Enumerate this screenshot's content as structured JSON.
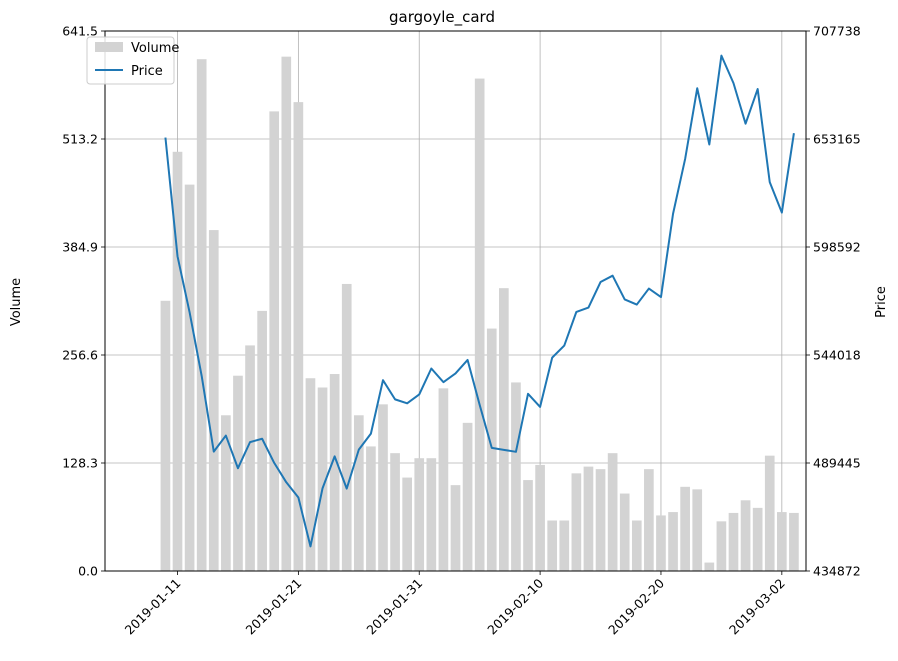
{
  "chart_data": {
    "type": "bar+line",
    "title": "gargoyle_card",
    "xlabel": "",
    "ylabel_left": "Volume",
    "ylabel_right": "Price",
    "legend_position": "top-left",
    "grid": true,
    "x_tick_labels": [
      "2019-01-11",
      "2019-01-21",
      "2019-01-31",
      "2019-02-10",
      "2019-02-20",
      "2019-03-02"
    ],
    "y_left_ticks": [
      "0.0",
      "128.3",
      "256.6",
      "384.9",
      "513.2",
      "641.5"
    ],
    "y_right_ticks": [
      "434872",
      "489445",
      "544018",
      "598592",
      "653165",
      "707738"
    ],
    "ylim_left": [
      0,
      641.5
    ],
    "ylim_right": [
      434872,
      707738
    ],
    "xlim": [
      "2019-01-05",
      "2019-03-04"
    ],
    "colors": {
      "volume": "#d3d3d3",
      "price": "#1f77b4",
      "grid": "#b0b0b0"
    },
    "dates": [
      "2019-01-10",
      "2019-01-11",
      "2019-01-12",
      "2019-01-13",
      "2019-01-14",
      "2019-01-15",
      "2019-01-16",
      "2019-01-17",
      "2019-01-18",
      "2019-01-19",
      "2019-01-20",
      "2019-01-21",
      "2019-01-22",
      "2019-01-23",
      "2019-01-24",
      "2019-01-25",
      "2019-01-26",
      "2019-01-27",
      "2019-01-28",
      "2019-01-29",
      "2019-01-30",
      "2019-01-31",
      "2019-02-01",
      "2019-02-02",
      "2019-02-03",
      "2019-02-04",
      "2019-02-05",
      "2019-02-06",
      "2019-02-07",
      "2019-02-08",
      "2019-02-09",
      "2019-02-10",
      "2019-02-11",
      "2019-02-12",
      "2019-02-13",
      "2019-02-14",
      "2019-02-15",
      "2019-02-16",
      "2019-02-17",
      "2019-02-18",
      "2019-02-19",
      "2019-02-20",
      "2019-02-21",
      "2019-02-22",
      "2019-02-23",
      "2019-02-24",
      "2019-02-25",
      "2019-02-26",
      "2019-02-27",
      "2019-02-28",
      "2019-03-01",
      "2019-03-02",
      "2019-03-03"
    ],
    "series": [
      {
        "name": "Volume",
        "kind": "bar",
        "axis": "left",
        "values": [
          321,
          498,
          459,
          608,
          405,
          185,
          232,
          268,
          309,
          546,
          611,
          557,
          229,
          218,
          234,
          341,
          185,
          148,
          198,
          140,
          111,
          134,
          134,
          217,
          102,
          176,
          585,
          288,
          336,
          224,
          108,
          126,
          60,
          60,
          116,
          124,
          121,
          140,
          92,
          60,
          121,
          66,
          70,
          100,
          97,
          10,
          59,
          69,
          84,
          75,
          137,
          70,
          69
        ]
      },
      {
        "name": "Price",
        "kind": "line",
        "axis": "right",
        "values": [
          653900,
          593900,
          565600,
          533400,
          495200,
          503300,
          486800,
          500000,
          501700,
          489500,
          479700,
          472000,
          447300,
          476700,
          492800,
          476500,
          496200,
          504300,
          531300,
          521600,
          519600,
          524100,
          537200,
          530300,
          534700,
          541500,
          518800,
          497100,
          496100,
          495100,
          524400,
          517800,
          542700,
          548800,
          565800,
          568000,
          580900,
          584100,
          572100,
          569500,
          577600,
          573300,
          615400,
          643100,
          678800,
          650400,
          695300,
          681400,
          660900,
          678400,
          631400,
          616000,
          656100
        ]
      }
    ]
  }
}
